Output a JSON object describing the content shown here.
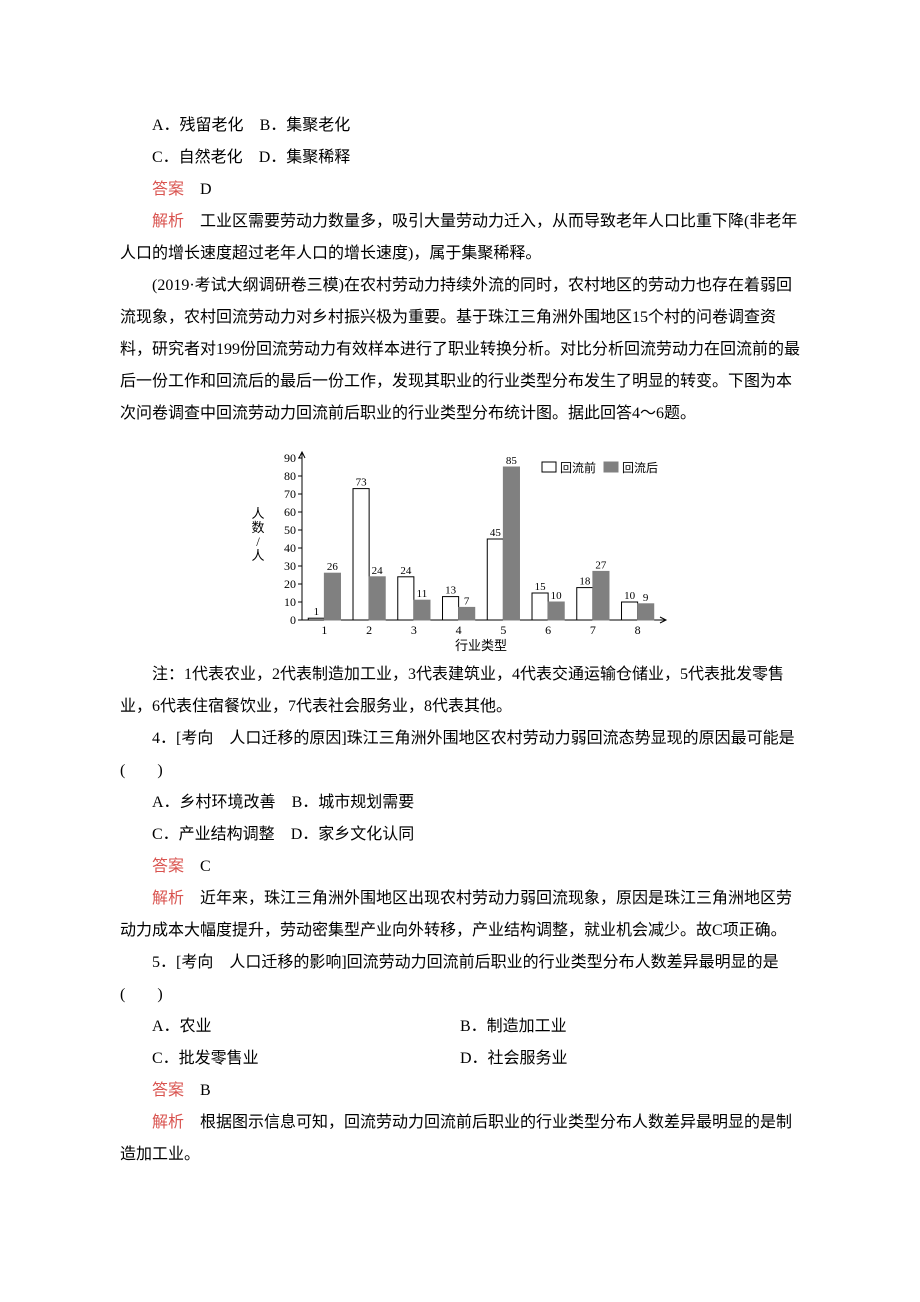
{
  "top": {
    "optA": "A．残留老化",
    "optB": "B．集聚老化",
    "optC": "C．自然老化",
    "optD": "D．集聚稀释",
    "ans_label": "答案",
    "ans_val": "D",
    "exp_label": "解析",
    "exp_text": "工业区需要劳动力数量多，吸引大量劳动力迁入，从而导致老年人口比重下降(非老年人口的增长速度超过老年人口的增长速度)，属于集聚稀释。"
  },
  "passage": {
    "text": "(2019·考试大纲调研卷三模)在农村劳动力持续外流的同时，农村地区的劳动力也存在着弱回流现象，农村回流劳动力对乡村振兴极为重要。基于珠江三角洲外围地区15个村的问卷调查资料，研究者对199份回流劳动力有效样本进行了职业转换分析。对比分析回流劳动力在回流前的最后一份工作和回流后的最后一份工作，发现其职业的行业类型分布发生了明显的转变。下图为本次问卷调查中回流劳动力回流前后职业的行业类型分布统计图。据此回答4～6题。"
  },
  "chart": {
    "type": "bar",
    "categories": [
      "1",
      "2",
      "3",
      "4",
      "5",
      "6",
      "7",
      "8"
    ],
    "series": [
      {
        "name": "回流前",
        "values": [
          1,
          73,
          24,
          13,
          45,
          15,
          18,
          10
        ],
        "fill": "#ffffff",
        "stroke": "#000000"
      },
      {
        "name": "回流后",
        "values": [
          26,
          24,
          11,
          7,
          85,
          10,
          27,
          9
        ],
        "fill": "#808080",
        "stroke": "#808080"
      }
    ],
    "label_values_before": [
      "1",
      "73",
      "24",
      "13",
      "45",
      "15",
      "18",
      "10"
    ],
    "label_values_after": [
      "26",
      "24",
      "11",
      "7",
      "85",
      "10",
      "27",
      "9"
    ],
    "y_ticks": [
      "0",
      "10",
      "20",
      "30",
      "40",
      "50",
      "60",
      "70",
      "80",
      "90"
    ],
    "y_title_lines": [
      "人",
      "数",
      "/",
      "人"
    ],
    "x_title": "行业类型",
    "legend_before": "回流前",
    "legend_after": "回流后",
    "axis_color": "#000000",
    "grid": "off",
    "label_fontsize": 11,
    "tick_fontsize": 12,
    "bar_group_width": 0.72,
    "y_max": 90
  },
  "note": "注：1代表农业，2代表制造加工业，3代表建筑业，4代表交通运输仓储业，5代表批发零售业，6代表住宿餐饮业，7代表社会服务业，8代表其他。",
  "q4": {
    "stem": "4．[考向　人口迁移的原因]珠江三角洲外围地区农村劳动力弱回流态势显现的原因最可能是(　　)",
    "optA": "A．乡村环境改善",
    "optB": "B．城市规划需要",
    "optC": "C．产业结构调整",
    "optD": "D．家乡文化认同",
    "ans_label": "答案",
    "ans_val": "C",
    "exp_label": "解析",
    "exp_text": "近年来，珠江三角洲外围地区出现农村劳动力弱回流现象，原因是珠江三角洲地区劳动力成本大幅度提升，劳动密集型产业向外转移，产业结构调整，就业机会减少。故C项正确。"
  },
  "q5": {
    "stem": "5．[考向　人口迁移的影响]回流劳动力回流前后职业的行业类型分布人数差异最明显的是(　　)",
    "optA": "A．农业",
    "optB": "B．制造加工业",
    "optC": "C．批发零售业",
    "optD": "D．社会服务业",
    "ans_label": "答案",
    "ans_val": "B",
    "exp_label": "解析",
    "exp_text": "根据图示信息可知，回流劳动力回流前后职业的行业类型分布人数差异最明显的是制造加工业。"
  }
}
